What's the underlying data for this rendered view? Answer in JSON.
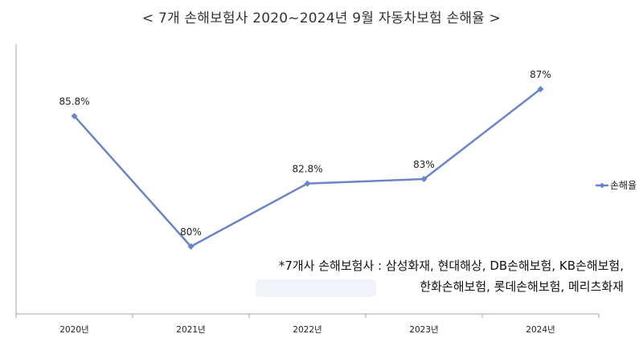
{
  "chart_data": {
    "type": "line",
    "title": "< 7개 손해보험사 2020~2024년 9월 자동차보험 손해율 >",
    "categories": [
      "2020년",
      "2021년",
      "2022년",
      "2023년",
      "2024년"
    ],
    "series": [
      {
        "name": "손해율",
        "values": [
          85.8,
          80.0,
          82.8,
          83.0,
          87.0
        ],
        "labels": [
          "85.8%",
          "80%",
          "82.8%",
          "83%",
          "87%"
        ],
        "color": "#6a84c6"
      }
    ],
    "ylim": [
      77,
      89
    ],
    "grid": false,
    "legend": "right",
    "xlabel": "",
    "ylabel": ""
  },
  "note": {
    "line1": "*7개사 손해보험사 : 삼성화재, 현대해상, DB손해보험, KB손해보험,",
    "line2": "한화손해보험, 롯데손해보험, 메리츠화재"
  },
  "colors": {
    "axis": "#a6a6a6",
    "line": "#6a84c6",
    "watermark": "#8fa6c9"
  }
}
